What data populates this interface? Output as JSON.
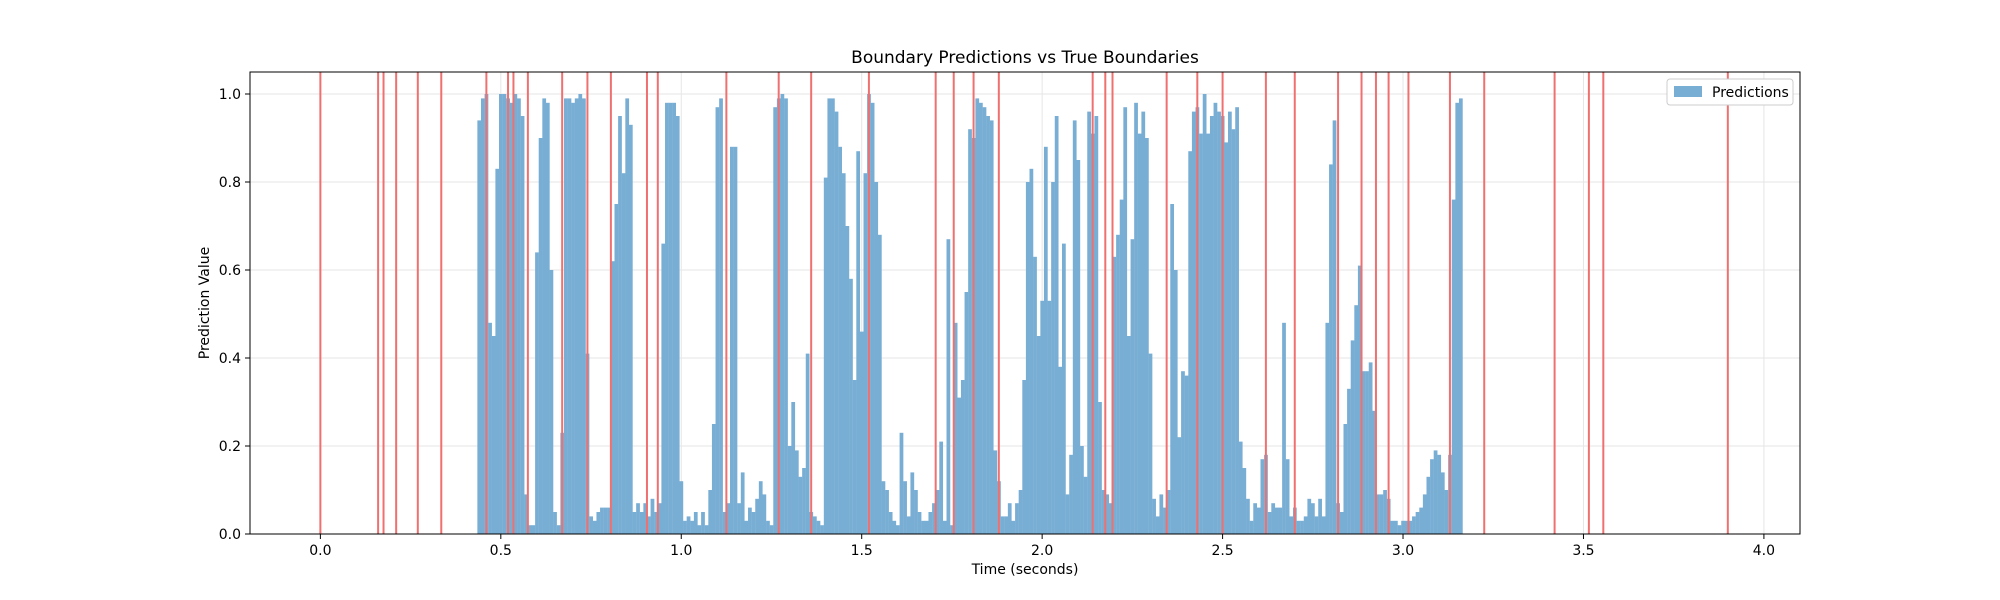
{
  "chart_data": {
    "type": "bar",
    "title": "Boundary Predictions vs True Boundaries",
    "xlabel": "Time (seconds)",
    "ylabel": "Prediction Value",
    "xlim": [
      -0.195,
      4.1
    ],
    "ylim": [
      0.0,
      1.05
    ],
    "xticks": [
      0.0,
      0.5,
      1.0,
      1.5,
      2.0,
      2.5,
      3.0,
      3.5,
      4.0
    ],
    "xtick_labels": [
      "0.0",
      "0.5",
      "1.0",
      "1.5",
      "2.0",
      "2.5",
      "3.0",
      "3.5",
      "4.0"
    ],
    "yticks": [
      0.0,
      0.2,
      0.4,
      0.6,
      0.8,
      1.0
    ],
    "ytick_labels": [
      "0.0",
      "0.2",
      "0.4",
      "0.6",
      "0.8",
      "1.0"
    ],
    "grid": true,
    "legend": {
      "position": "top-right",
      "entries": [
        "Predictions"
      ]
    },
    "bar_color": "#79aed4",
    "boundary_color": "#f07070",
    "series": [
      {
        "name": "Predictions",
        "x_start": 0.44,
        "x_step": 0.01,
        "bar_width": 0.01,
        "values": [
          0.94,
          0.99,
          1.0,
          0.48,
          0.45,
          0.83,
          1.0,
          1.0,
          0.99,
          0.98,
          1.0,
          0.99,
          0.95,
          0.09,
          0.02,
          0.02,
          0.64,
          0.9,
          0.99,
          0.98,
          0.6,
          0.05,
          0.02,
          0.23,
          0.99,
          0.99,
          0.98,
          0.99,
          1.0,
          0.99,
          0.41,
          0.04,
          0.03,
          0.05,
          0.06,
          0.06,
          0.06,
          0.62,
          0.75,
          0.95,
          0.82,
          0.99,
          0.93,
          0.05,
          0.07,
          0.05,
          0.07,
          0.04,
          0.08,
          0.05,
          0.07,
          0.66,
          0.98,
          0.98,
          0.98,
          0.95,
          0.12,
          0.03,
          0.04,
          0.03,
          0.05,
          0.02,
          0.05,
          0.02,
          0.1,
          0.25,
          0.97,
          0.99,
          0.05,
          0.07,
          0.88,
          0.88,
          0.07,
          0.14,
          0.03,
          0.06,
          0.05,
          0.08,
          0.12,
          0.09,
          0.03,
          0.02,
          0.97,
          0.99,
          1.0,
          0.99,
          0.2,
          0.3,
          0.19,
          0.13,
          0.15,
          0.41,
          0.05,
          0.04,
          0.03,
          0.02,
          0.81,
          0.99,
          0.99,
          0.96,
          0.88,
          0.82,
          0.7,
          0.58,
          0.35,
          0.87,
          0.46,
          0.82,
          1.0,
          0.98,
          0.8,
          0.68,
          0.12,
          0.1,
          0.05,
          0.03,
          0.02,
          0.23,
          0.12,
          0.04,
          0.14,
          0.1,
          0.05,
          0.03,
          0.03,
          0.05,
          0.07,
          0.1,
          0.21,
          0.03,
          0.67,
          0.02,
          0.48,
          0.31,
          0.35,
          0.55,
          0.92,
          0.9,
          0.99,
          0.98,
          0.97,
          0.95,
          0.94,
          0.19,
          0.12,
          0.04,
          0.04,
          0.07,
          0.03,
          0.07,
          0.1,
          0.35,
          0.8,
          0.83,
          0.63,
          0.45,
          0.53,
          0.88,
          0.53,
          0.8,
          0.95,
          0.38,
          0.66,
          0.09,
          0.18,
          0.94,
          0.85,
          0.2,
          0.13,
          0.96,
          0.91,
          0.95,
          0.3,
          0.1,
          0.09,
          0.07,
          0.63,
          0.68,
          0.76,
          0.97,
          0.45,
          0.67,
          0.98,
          0.91,
          0.96,
          0.9,
          0.41,
          0.08,
          0.04,
          0.09,
          0.06,
          0.1,
          0.75,
          0.6,
          0.22,
          0.37,
          0.36,
          0.87,
          0.96,
          0.97,
          0.91,
          1.0,
          0.91,
          0.95,
          0.98,
          0.96,
          0.95,
          0.89,
          0.96,
          0.92,
          0.97,
          0.21,
          0.15,
          0.08,
          0.03,
          0.07,
          0.06,
          0.17,
          0.18,
          0.05,
          0.07,
          0.06,
          0.06,
          0.48,
          0.17,
          0.04,
          0.06,
          0.03,
          0.03,
          0.04,
          0.08,
          0.07,
          0.04,
          0.08,
          0.04,
          0.48,
          0.84,
          0.94,
          0.07,
          0.05,
          0.25,
          0.33,
          0.44,
          0.52,
          0.61,
          0.37,
          0.37,
          0.39,
          0.28,
          0.09,
          0.09,
          0.1,
          0.08,
          0.03,
          0.03,
          0.02,
          0.03,
          0.03,
          0.03,
          0.04,
          0.05,
          0.06,
          0.09,
          0.13,
          0.17,
          0.19,
          0.18,
          0.14,
          0.1,
          0.18,
          0.76,
          0.98,
          0.99
        ]
      }
    ],
    "true_boundaries": [
      0.0,
      0.16,
      0.175,
      0.21,
      0.27,
      0.335,
      0.46,
      0.52,
      0.535,
      0.575,
      0.67,
      0.74,
      0.805,
      0.905,
      0.935,
      1.125,
      1.27,
      1.36,
      1.52,
      1.705,
      1.755,
      1.81,
      1.88,
      2.14,
      2.175,
      2.195,
      2.345,
      2.43,
      2.5,
      2.62,
      2.7,
      2.82,
      2.885,
      2.925,
      2.96,
      3.015,
      3.13,
      3.225,
      3.42,
      3.515,
      3.555,
      3.9
    ]
  }
}
